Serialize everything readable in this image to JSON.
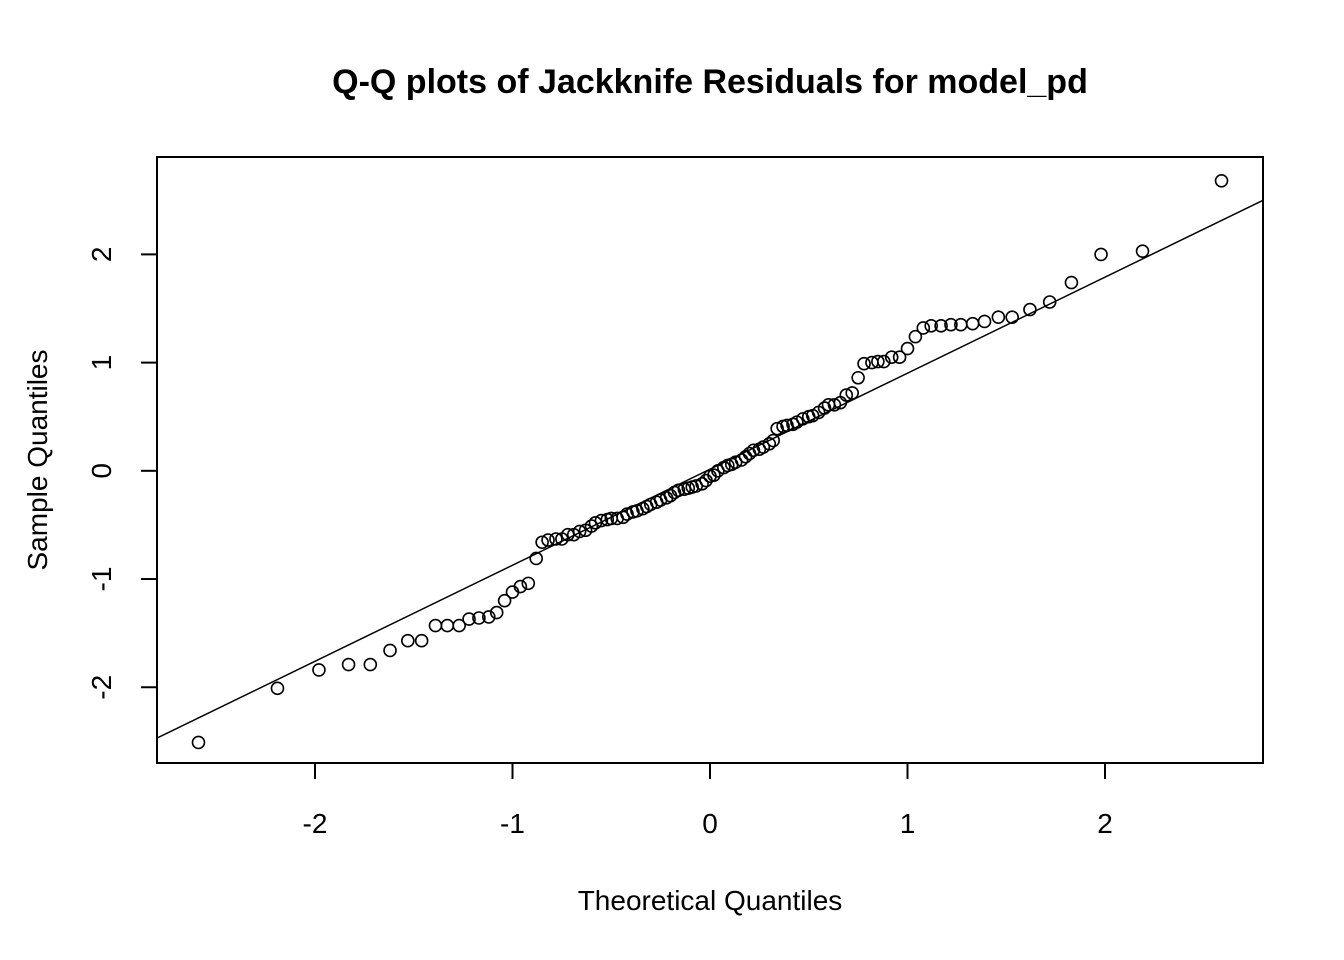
{
  "chart_data": {
    "type": "scatter",
    "title": "Q-Q plots of Jackknife Residuals for model_pd",
    "xlabel": "Theoretical Quantiles",
    "ylabel": "Sample Quantiles",
    "xlim": [
      -2.8,
      2.8
    ],
    "ylim": [
      -2.7,
      2.9
    ],
    "x_ticks": [
      -2,
      -1,
      0,
      1,
      2
    ],
    "x_tick_labels": [
      "-2",
      "-1",
      "0",
      "1",
      "2"
    ],
    "y_ticks": [
      -2,
      -1,
      0,
      1,
      2
    ],
    "y_tick_labels": [
      "-2",
      "-1",
      "0",
      "1",
      "2"
    ],
    "grid": false,
    "legend": "none",
    "marker": "open-circle",
    "reference_line": {
      "x": [
        -2.8,
        2.8
      ],
      "y": [
        -2.47,
        2.5
      ]
    },
    "series": [
      {
        "points": [
          [
            -2.59,
            -2.51
          ],
          [
            -2.19,
            -2.01
          ],
          [
            -1.98,
            -1.84
          ],
          [
            -1.83,
            -1.79
          ],
          [
            -1.72,
            -1.79
          ],
          [
            -1.62,
            -1.66
          ],
          [
            -1.53,
            -1.57
          ],
          [
            -1.46,
            -1.57
          ],
          [
            -1.39,
            -1.43
          ],
          [
            -1.33,
            -1.43
          ],
          [
            -1.27,
            -1.43
          ],
          [
            -1.22,
            -1.37
          ],
          [
            -1.17,
            -1.36
          ],
          [
            -1.12,
            -1.35
          ],
          [
            -1.08,
            -1.31
          ],
          [
            -1.04,
            -1.2
          ],
          [
            -1.0,
            -1.12
          ],
          [
            -0.96,
            -1.07
          ],
          [
            -0.92,
            -1.04
          ],
          [
            -0.88,
            -0.81
          ],
          [
            -0.85,
            -0.66
          ],
          [
            -0.82,
            -0.64
          ],
          [
            -0.78,
            -0.63
          ],
          [
            -0.75,
            -0.63
          ],
          [
            -0.72,
            -0.59
          ],
          [
            -0.69,
            -0.59
          ],
          [
            -0.66,
            -0.56
          ],
          [
            -0.63,
            -0.55
          ],
          [
            -0.6,
            -0.51
          ],
          [
            -0.58,
            -0.48
          ],
          [
            -0.55,
            -0.46
          ],
          [
            -0.52,
            -0.45
          ],
          [
            -0.5,
            -0.44
          ],
          [
            -0.47,
            -0.44
          ],
          [
            -0.44,
            -0.43
          ],
          [
            -0.42,
            -0.4
          ],
          [
            -0.39,
            -0.38
          ],
          [
            -0.37,
            -0.37
          ],
          [
            -0.34,
            -0.35
          ],
          [
            -0.32,
            -0.33
          ],
          [
            -0.3,
            -0.31
          ],
          [
            -0.27,
            -0.29
          ],
          [
            -0.25,
            -0.27
          ],
          [
            -0.22,
            -0.25
          ],
          [
            -0.2,
            -0.23
          ],
          [
            -0.18,
            -0.2
          ],
          [
            -0.16,
            -0.18
          ],
          [
            -0.13,
            -0.17
          ],
          [
            -0.11,
            -0.16
          ],
          [
            -0.09,
            -0.15
          ],
          [
            -0.07,
            -0.14
          ],
          [
            -0.04,
            -0.12
          ],
          [
            -0.02,
            -0.09
          ],
          [
            0.0,
            -0.05
          ],
          [
            0.02,
            -0.04
          ],
          [
            0.04,
            0.0
          ],
          [
            0.07,
            0.03
          ],
          [
            0.09,
            0.05
          ],
          [
            0.11,
            0.06
          ],
          [
            0.13,
            0.08
          ],
          [
            0.16,
            0.1
          ],
          [
            0.18,
            0.13
          ],
          [
            0.2,
            0.16
          ],
          [
            0.22,
            0.19
          ],
          [
            0.25,
            0.2
          ],
          [
            0.27,
            0.22
          ],
          [
            0.3,
            0.25
          ],
          [
            0.32,
            0.28
          ],
          [
            0.34,
            0.39
          ],
          [
            0.37,
            0.41
          ],
          [
            0.39,
            0.42
          ],
          [
            0.42,
            0.43
          ],
          [
            0.44,
            0.45
          ],
          [
            0.47,
            0.48
          ],
          [
            0.5,
            0.5
          ],
          [
            0.52,
            0.51
          ],
          [
            0.55,
            0.54
          ],
          [
            0.58,
            0.58
          ],
          [
            0.6,
            0.61
          ],
          [
            0.63,
            0.61
          ],
          [
            0.66,
            0.63
          ],
          [
            0.69,
            0.7
          ],
          [
            0.72,
            0.72
          ],
          [
            0.75,
            0.86
          ],
          [
            0.78,
            0.99
          ],
          [
            0.82,
            1.0
          ],
          [
            0.85,
            1.01
          ],
          [
            0.88,
            1.01
          ],
          [
            0.92,
            1.05
          ],
          [
            0.96,
            1.05
          ],
          [
            1.0,
            1.13
          ],
          [
            1.04,
            1.24
          ],
          [
            1.08,
            1.32
          ],
          [
            1.12,
            1.34
          ],
          [
            1.17,
            1.34
          ],
          [
            1.22,
            1.35
          ],
          [
            1.27,
            1.35
          ],
          [
            1.33,
            1.36
          ],
          [
            1.39,
            1.38
          ],
          [
            1.46,
            1.42
          ],
          [
            1.53,
            1.42
          ],
          [
            1.62,
            1.49
          ],
          [
            1.72,
            1.56
          ],
          [
            1.83,
            1.74
          ],
          [
            1.98,
            2.0
          ],
          [
            2.19,
            2.03
          ],
          [
            2.59,
            2.68
          ]
        ]
      }
    ]
  }
}
